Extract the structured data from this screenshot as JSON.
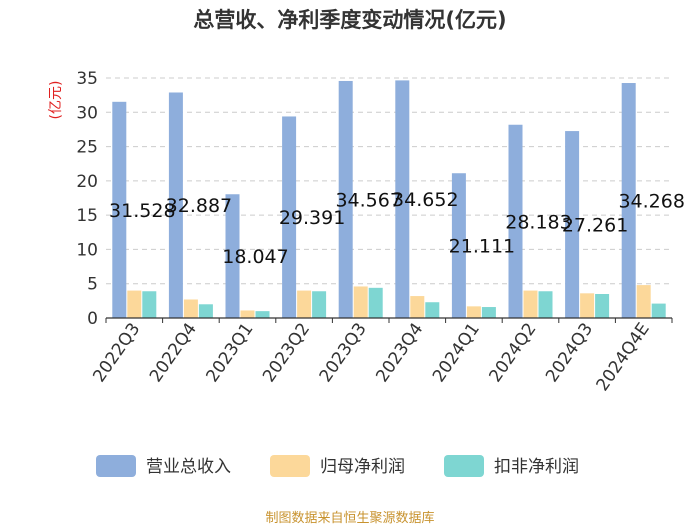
{
  "chart_data": {
    "type": "bar",
    "title": "总营收、净利季度变动情况(亿元)",
    "ylabel": "(亿元)",
    "xlabel": "",
    "ylim": [
      0,
      35
    ],
    "yticks": [
      0,
      5,
      10,
      15,
      20,
      25,
      30,
      35
    ],
    "grid": true,
    "legend_position": "bottom",
    "categories": [
      "2022Q3",
      "2022Q4",
      "2023Q1",
      "2023Q2",
      "2023Q3",
      "2023Q4",
      "2024Q1",
      "2024Q2",
      "2024Q3",
      "2024Q4E"
    ],
    "series": [
      {
        "name": "营业总收入",
        "color": "#8eaedc",
        "values": [
          31.528,
          32.887,
          18.047,
          29.391,
          34.567,
          34.652,
          21.111,
          28.183,
          27.261,
          34.268
        ]
      },
      {
        "name": "归母净利润",
        "color": "#fcd89a",
        "values": [
          4.0,
          2.7,
          1.1,
          4.0,
          4.6,
          3.2,
          1.7,
          4.0,
          3.6,
          4.8
        ]
      },
      {
        "name": "扣非净利润",
        "color": "#7ed6d2",
        "values": [
          3.9,
          2.0,
          1.0,
          3.9,
          4.4,
          2.3,
          1.6,
          3.9,
          3.5,
          2.1
        ]
      }
    ],
    "data_labels": [
      "31.528",
      "32.887",
      "18.047",
      "29.391",
      "34.567",
      "34.652",
      "21.111",
      "28.183",
      "27.261",
      "34.268"
    ]
  },
  "source": "制图数据来自恒生聚源数据库"
}
